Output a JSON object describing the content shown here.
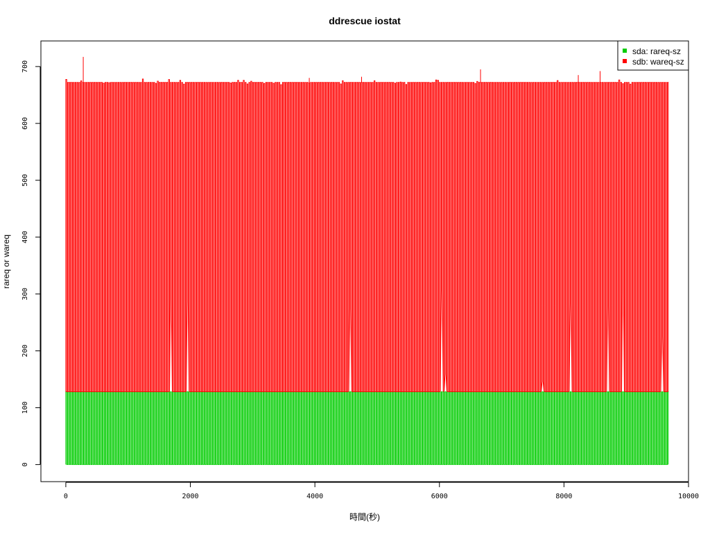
{
  "chart_data": {
    "type": "line",
    "title": "ddrescue iostat",
    "xlabel": "時間(秒)",
    "ylabel": "rareq or wareq",
    "xlim": [
      -400,
      10000
    ],
    "ylim": [
      -30,
      745
    ],
    "x_ticks": [
      0,
      2000,
      4000,
      6000,
      8000,
      10000
    ],
    "y_ticks": [
      0,
      100,
      200,
      300,
      400,
      500,
      600,
      700
    ],
    "grid": false,
    "legend_position": "top-right",
    "series": [
      {
        "name": "sda: rareq-sz",
        "color": "#00cc00",
        "pattern": "oscillating",
        "x_range": [
          0,
          9660
        ],
        "high": 128,
        "low": 0,
        "period_s": 30
      },
      {
        "name": "sdb: wareq-sz",
        "color": "#ff0000",
        "pattern": "oscillating",
        "x_range": [
          0,
          9660
        ],
        "high": 672,
        "low": 128,
        "period_s": 30,
        "peaks": [
          {
            "x": 280,
            "y": 717
          },
          {
            "x": 6660,
            "y": 695
          },
          {
            "x": 8580,
            "y": 692
          },
          {
            "x": 8230,
            "y": 685
          },
          {
            "x": 3910,
            "y": 680
          },
          {
            "x": 4750,
            "y": 682
          }
        ]
      }
    ]
  }
}
